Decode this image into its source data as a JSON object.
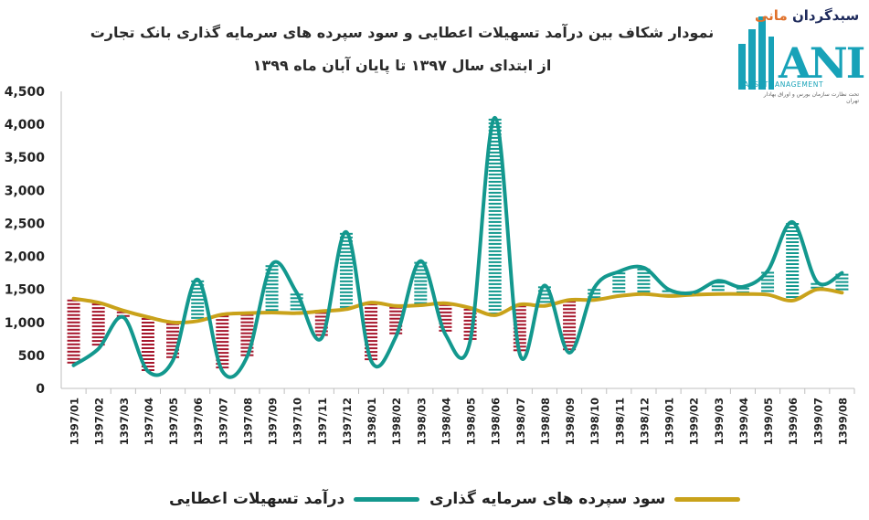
{
  "chart_data": {
    "type": "line",
    "title": "نمودار شکاف بین درآمد تسهیلات اعطایی و سود سپرده های سرمایه گذاری بانک تجارت",
    "subtitle": "از ابتدای سال ۱۳۹۷ تا پایان آبان ماه ۱۳۹۹",
    "categories": [
      "1397/01",
      "1397/02",
      "1397/03",
      "1397/04",
      "1397/05",
      "1397/06",
      "1397/07",
      "1397/08",
      "1397/09",
      "1397/10",
      "1397/11",
      "1397/12",
      "1398/01",
      "1398/02",
      "1398/03",
      "1398/04",
      "1398/05",
      "1398/06",
      "1398/07",
      "1398/08",
      "1398/09",
      "1398/10",
      "1398/11",
      "1398/12",
      "1399/01",
      "1399/02",
      "1399/03",
      "1399/04",
      "1399/05",
      "1399/06",
      "1399/07",
      "1399/08"
    ],
    "series": [
      {
        "name": "درآمد تسهیلات اعطایی",
        "color": "#13988e",
        "values": [
          350,
          600,
          1080,
          260,
          420,
          1650,
          260,
          480,
          1880,
          1450,
          760,
          2370,
          420,
          780,
          1930,
          820,
          720,
          4100,
          520,
          1560,
          540,
          1520,
          1770,
          1830,
          1500,
          1450,
          1630,
          1540,
          1780,
          2520,
          1610,
          1750
        ]
      },
      {
        "name": "سود سپرده های سرمایه گذاری",
        "color": "#c9a21a",
        "values": [
          1360,
          1300,
          1180,
          1080,
          1000,
          1020,
          1120,
          1140,
          1150,
          1140,
          1170,
          1200,
          1300,
          1250,
          1260,
          1290,
          1220,
          1110,
          1270,
          1250,
          1340,
          1340,
          1400,
          1430,
          1400,
          1420,
          1430,
          1430,
          1420,
          1330,
          1500,
          1450
        ]
      }
    ],
    "gap_colors": {
      "positive": "#13988e",
      "negative": "#a6162c"
    },
    "ylim": [
      0,
      4500
    ],
    "yticks": [
      0,
      500,
      1000,
      1500,
      2000,
      2500,
      3000,
      3500,
      4000,
      4500
    ],
    "ytick_labels": [
      "0",
      "500",
      "1,000",
      "1,500",
      "2,000",
      "2,500",
      "3,000",
      "3,500",
      "4,000",
      "4,500"
    ],
    "grid": false,
    "legend_position": "bottom"
  },
  "logo": {
    "brand_text": "سبدگردان",
    "brand_accent": "مانی",
    "letters": "ANI",
    "subtitle": "ASSETMANAGEMENT",
    "tagline": "تحت نظارت سازمان بورس و اوراق بهادار تهران"
  }
}
